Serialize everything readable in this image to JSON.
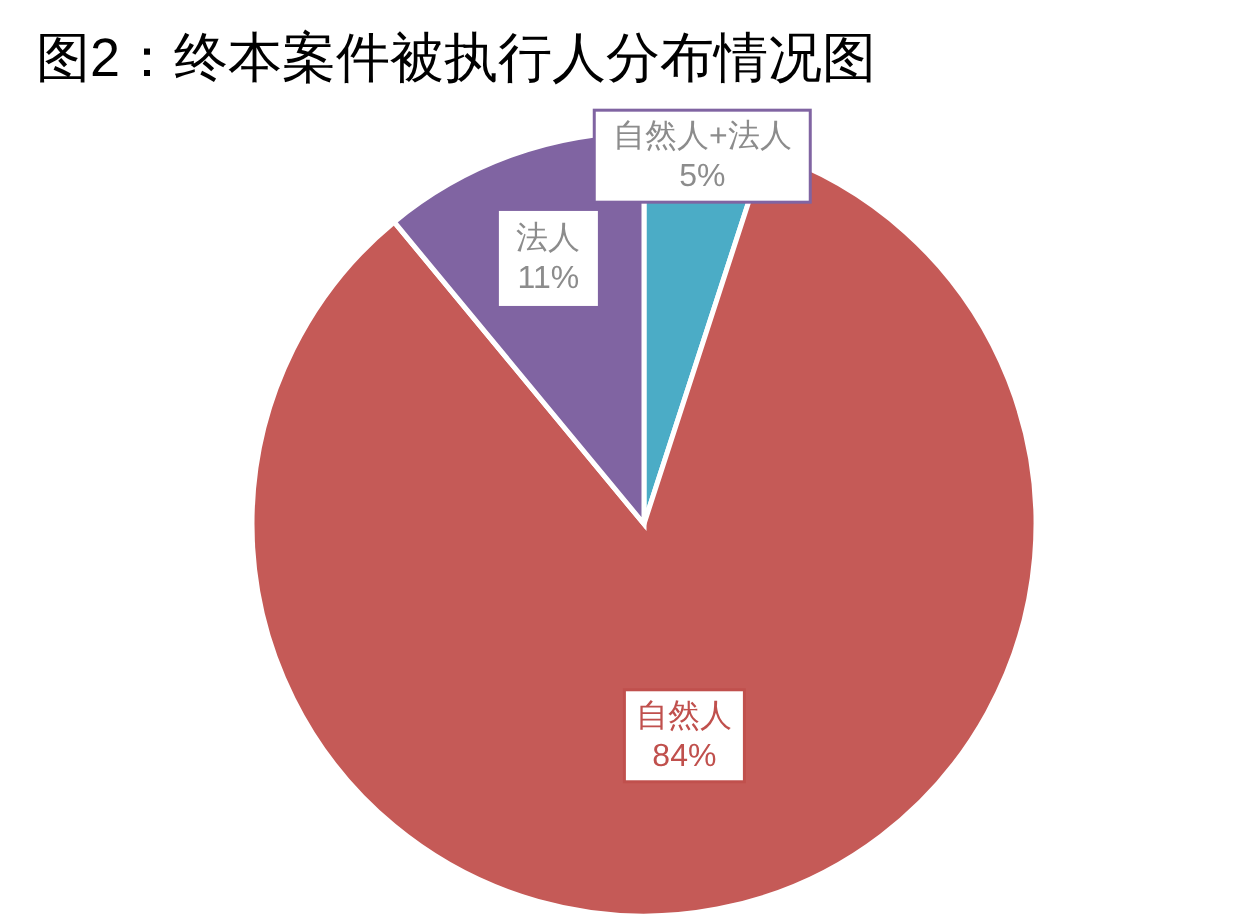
{
  "chart_data": {
    "type": "pie",
    "title": "图2：终本案件被执行人分布情况图",
    "categories": [
      "自然人+法人",
      "自然人",
      "法人"
    ],
    "values": [
      5,
      84,
      11
    ],
    "colors": [
      "#4bacc6",
      "#c55a57",
      "#8064a2"
    ],
    "value_labels": [
      "5%",
      "84%",
      "11%"
    ],
    "legend": false
  }
}
